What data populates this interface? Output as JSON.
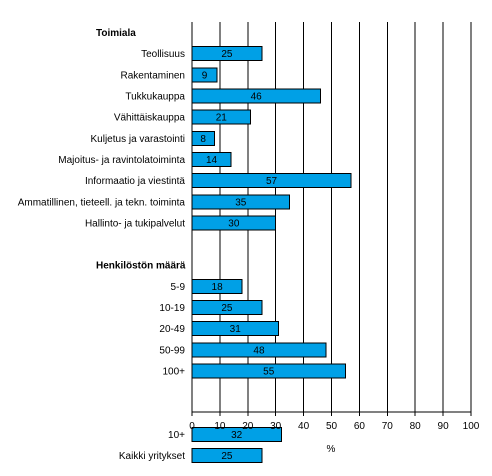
{
  "chart_data": {
    "type": "bar",
    "orientation": "horizontal",
    "title": "",
    "xlabel": "%",
    "ylabel": "",
    "xlim": [
      0,
      100
    ],
    "x_ticks": [
      0,
      10,
      20,
      30,
      40,
      50,
      60,
      70,
      80,
      90,
      100
    ],
    "grid": "vertical",
    "legend": "none",
    "bar_color": "#00A0E6",
    "bar_edge_color": "#000000",
    "groups": [
      {
        "name": "Toimiala",
        "categories": [
          "Teollisuus",
          "Rakentaminen",
          "Tukkukauppa",
          "Vähittäiskauppa",
          "Kuljetus ja varastointi",
          "Majoitus- ja ravintolatoiminta",
          "Informaatio ja viestintä",
          "Ammatillinen, tieteell. ja tekn. toiminta",
          "Hallinto- ja tukipalvelut"
        ],
        "values": [
          25,
          9,
          46,
          21,
          8,
          14,
          57,
          35,
          30
        ]
      },
      {
        "name": "Henkilöstön määrä",
        "categories": [
          "5-9",
          "10-19",
          "20-49",
          "50-99",
          "100+"
        ],
        "values": [
          18,
          25,
          31,
          48,
          55
        ]
      },
      {
        "name": "",
        "categories": [
          "10+",
          "Kaikki yritykset"
        ],
        "values": [
          32,
          25
        ]
      }
    ]
  }
}
